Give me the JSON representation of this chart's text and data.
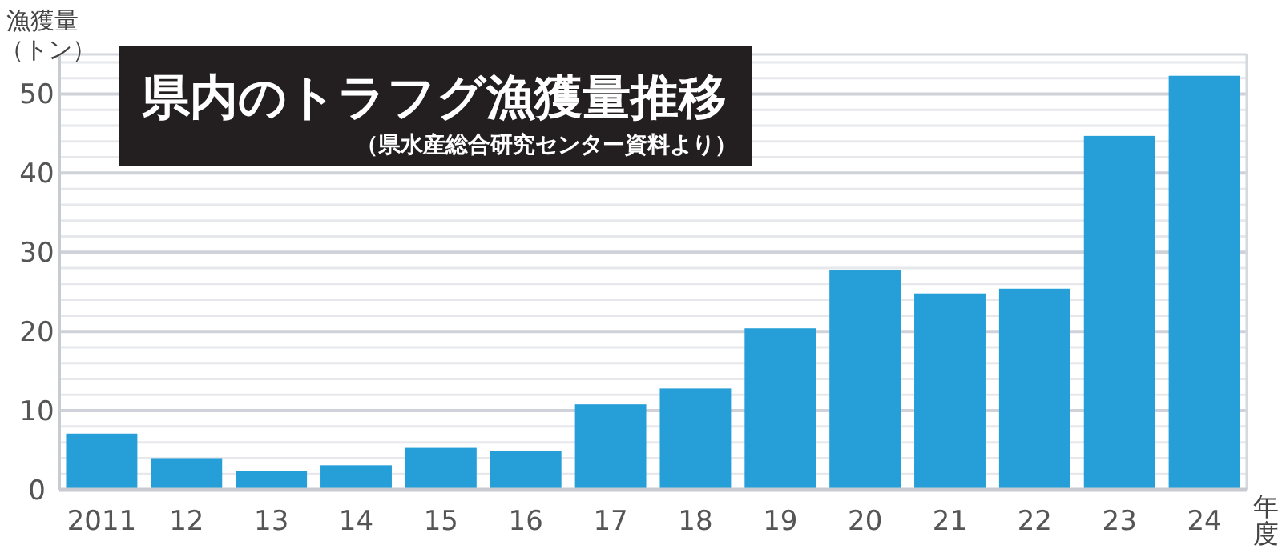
{
  "chart_data": {
    "type": "bar",
    "title": "県内のトラフグ漁獲量推移",
    "subtitle": "（県水産総合研究センター資料より）",
    "ylabel": "漁獲量（トン）",
    "xlabel": "年度",
    "categories": [
      "2011",
      "12",
      "13",
      "14",
      "15",
      "16",
      "17",
      "18",
      "19",
      "20",
      "21",
      "22",
      "23",
      "24"
    ],
    "values": [
      7.1,
      4.0,
      2.4,
      3.1,
      5.3,
      4.9,
      10.8,
      12.8,
      20.4,
      27.7,
      24.8,
      25.4,
      44.7,
      52.3
    ],
    "color": "#269fd9",
    "ylim": [
      0,
      55
    ],
    "yticks": [
      0,
      10,
      20,
      30,
      40,
      50
    ],
    "grid": "y"
  }
}
